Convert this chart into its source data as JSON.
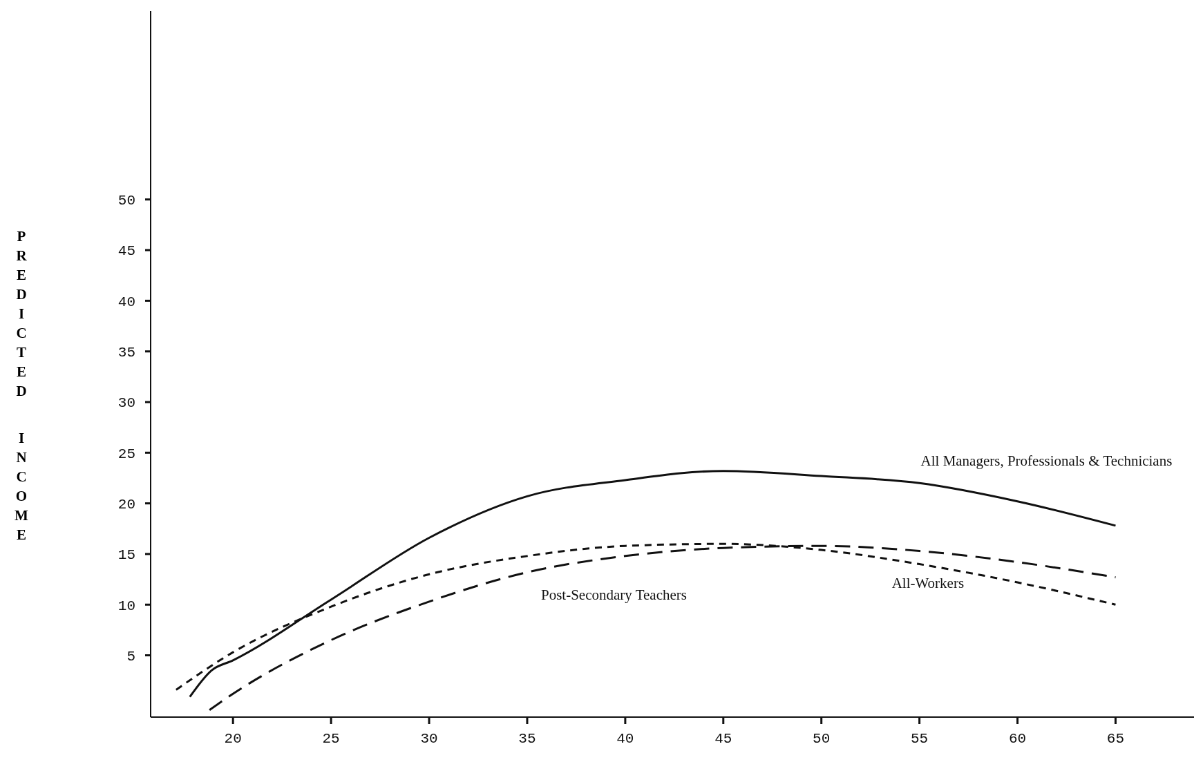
{
  "chart_data": {
    "type": "line",
    "ylabel": "PREDICTED INCOME",
    "xlim": [
      15.8,
      69
    ],
    "ylim": [
      -1.1,
      68.6
    ],
    "xticks": [
      20,
      25,
      30,
      35,
      40,
      45,
      50,
      55,
      60,
      65
    ],
    "yticks": [
      5,
      10,
      15,
      20,
      25,
      30,
      35,
      40,
      45,
      50
    ],
    "marker": "none",
    "series": [
      {
        "name": "All Managers, Professionals & Technicians",
        "color": "#111111",
        "line_style": "solid",
        "x": [
          17.8,
          18.9,
          20,
          25,
          30,
          35,
          40,
          45,
          50,
          55,
          60,
          65
        ],
        "values": [
          0.9,
          3.5,
          4.5,
          10.5,
          16.6,
          20.7,
          22.3,
          23.2,
          22.7,
          22.0,
          20.2,
          17.8
        ]
      },
      {
        "name": "All-Workers",
        "color": "#111111",
        "line_style": "dashed",
        "x": [
          17.1,
          20,
          25,
          30,
          35,
          40,
          45,
          50,
          55,
          60,
          65
        ],
        "values": [
          1.6,
          5.3,
          9.8,
          13.0,
          14.8,
          15.8,
          16.0,
          15.4,
          14.0,
          12.2,
          10.0
        ]
      },
      {
        "name": "Post-Secondary Teachers",
        "color": "#111111",
        "line_style": "dashed",
        "x": [
          18.8,
          20,
          25,
          30,
          35,
          40,
          45,
          50,
          55,
          60,
          65
        ],
        "values": [
          -0.4,
          1.2,
          6.5,
          10.3,
          13.2,
          14.8,
          15.6,
          15.8,
          15.3,
          14.2,
          12.7
        ]
      }
    ]
  }
}
